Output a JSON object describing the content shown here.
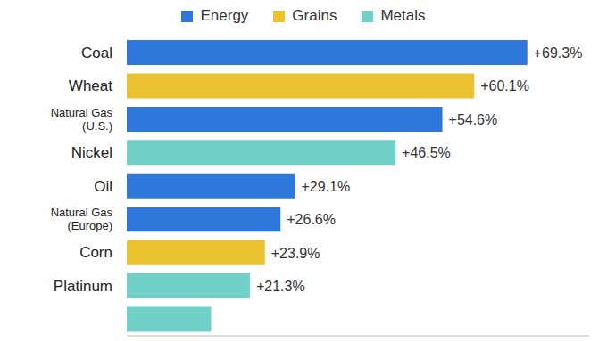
{
  "chart_data": {
    "type": "bar",
    "orientation": "horizontal",
    "categories": [
      "Coal",
      "Wheat",
      "Natural Gas (U.S.)",
      "Nickel",
      "Oil",
      "Natural Gas (Europe)",
      "Corn",
      "Platinum",
      null
    ],
    "series": [
      {
        "name": "Energy",
        "color": "#2f78db",
        "values": [
          69.3,
          null,
          54.6,
          null,
          29.1,
          26.6,
          null,
          null,
          null
        ],
        "value_labels": [
          "+69.3%",
          null,
          "+54.6%",
          null,
          "+29.1%",
          "+26.6%",
          null,
          null,
          null
        ]
      },
      {
        "name": "Grains",
        "color": "#ebc230",
        "values": [
          null,
          60.1,
          null,
          null,
          null,
          null,
          23.9,
          null,
          null
        ],
        "value_labels": [
          null,
          "+60.1%",
          null,
          null,
          null,
          null,
          "+23.9%",
          null,
          null
        ]
      },
      {
        "name": "Metals",
        "color": "#6fd1c8",
        "values": [
          null,
          null,
          null,
          46.5,
          null,
          null,
          null,
          21.3,
          14.6
        ],
        "value_labels": [
          null,
          null,
          null,
          "+46.5%",
          null,
          null,
          null,
          "+21.3%",
          null
        ]
      }
    ],
    "xlim": [
      0,
      80
    ],
    "data_labels": true,
    "tick_labels": "y",
    "legend": "top",
    "grid": false
  }
}
